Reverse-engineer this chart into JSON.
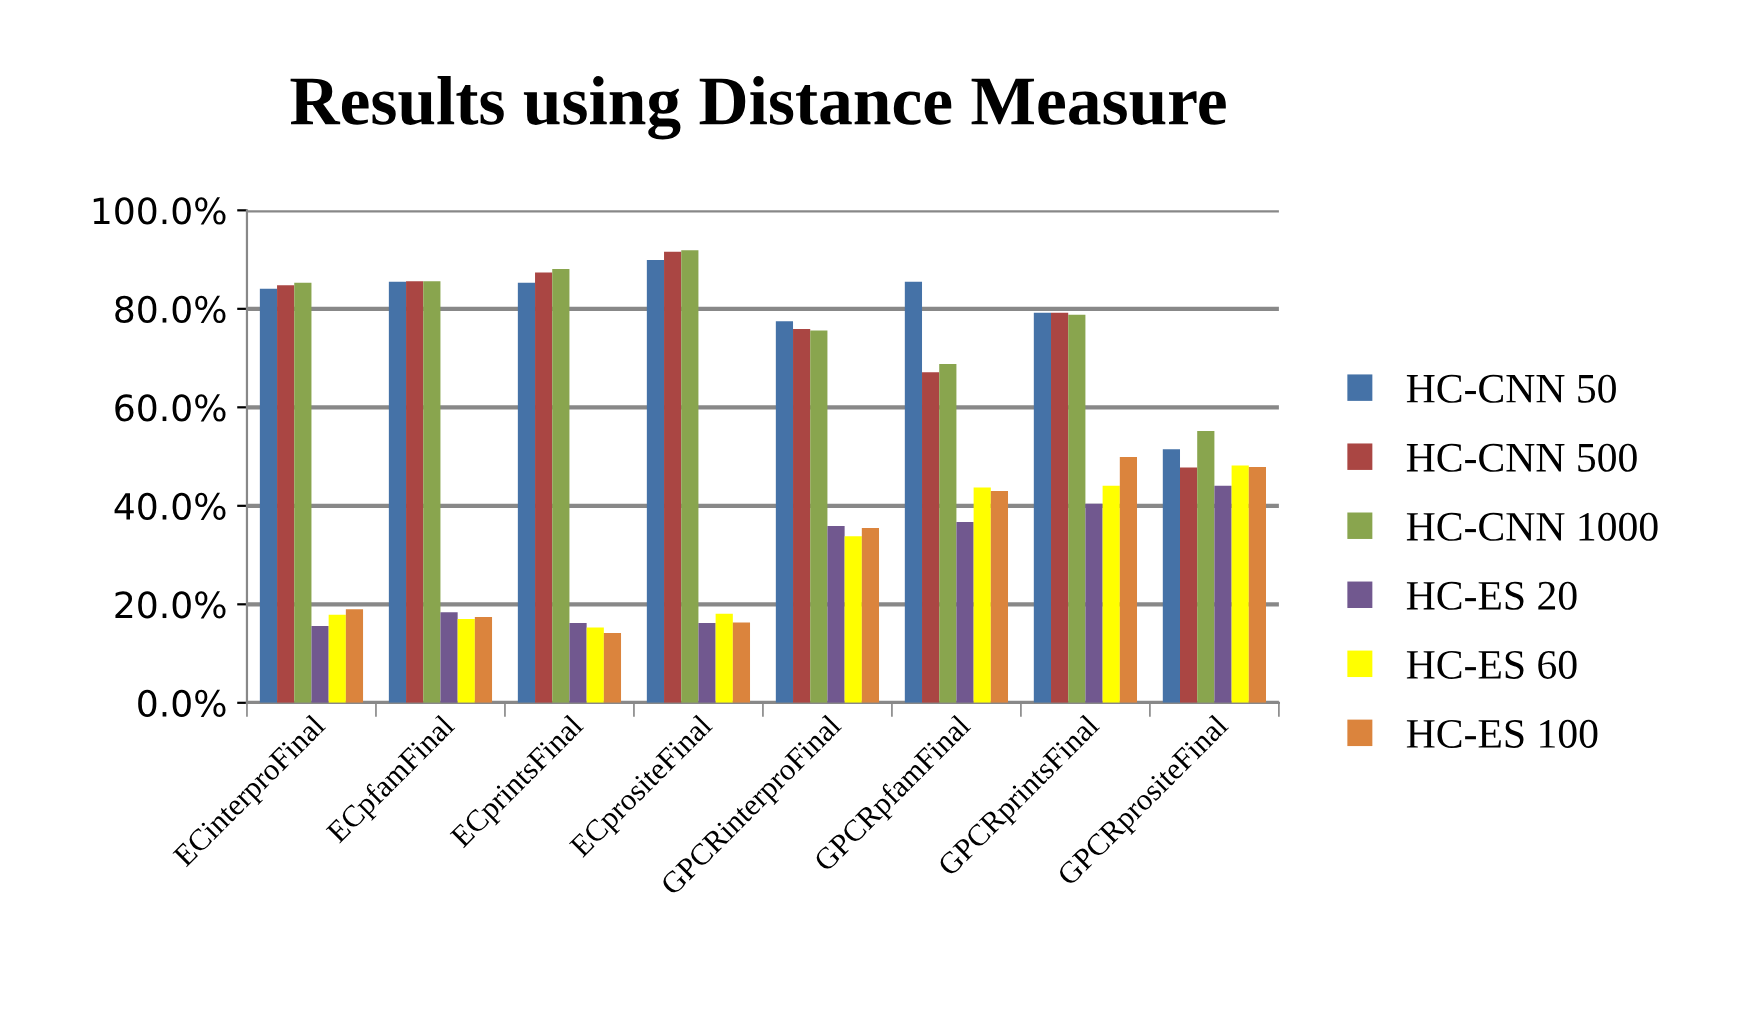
{
  "chart_data": {
    "type": "bar",
    "title": "Results using Distance Measure",
    "categories": [
      "ECinterproFinal",
      "ECpfamFinal",
      "ECprintsFinal",
      "ECprositeFinal",
      "GPCRinterproFinal",
      "GPCRpfamFinal",
      "GPCRprintsFinal",
      "GPCRprositeFinal"
    ],
    "series": [
      {
        "name": "HC-CNN 50",
        "color": "#4572a7",
        "values": [
          84.1,
          85.5,
          85.3,
          89.9,
          77.5,
          85.5,
          79.2,
          51.5
        ]
      },
      {
        "name": "HC-CNN 500",
        "color": "#aa4643",
        "values": [
          84.8,
          85.6,
          87.4,
          91.6,
          75.9,
          67.1,
          79.2,
          47.8
        ]
      },
      {
        "name": "HC-CNN 1000",
        "color": "#89a54e",
        "values": [
          85.3,
          85.6,
          88.1,
          91.9,
          75.6,
          68.8,
          78.8,
          55.2
        ]
      },
      {
        "name": "HC-ES 20",
        "color": "#71588f",
        "values": [
          15.6,
          18.4,
          16.2,
          16.2,
          35.9,
          36.7,
          40.4,
          44.1
        ]
      },
      {
        "name": "HC-ES 60",
        "color": "#ffff00",
        "values": [
          17.9,
          17.0,
          15.3,
          18.1,
          33.8,
          43.7,
          44.1,
          48.2
        ]
      },
      {
        "name": "HC-ES 100",
        "color": "#db843d",
        "values": [
          19.0,
          17.4,
          14.2,
          16.3,
          35.5,
          43.0,
          49.9,
          47.9
        ]
      }
    ],
    "ylim": [
      0,
      100
    ],
    "yticks": [
      {
        "value": 0,
        "label": "0.0%"
      },
      {
        "value": 20,
        "label": "20.0%"
      },
      {
        "value": 40,
        "label": "40.0%"
      },
      {
        "value": 60,
        "label": "60.0%"
      },
      {
        "value": 80,
        "label": "80.0%"
      },
      {
        "value": 100,
        "label": "100.0%"
      }
    ],
    "grid": "y",
    "legend": "right"
  }
}
